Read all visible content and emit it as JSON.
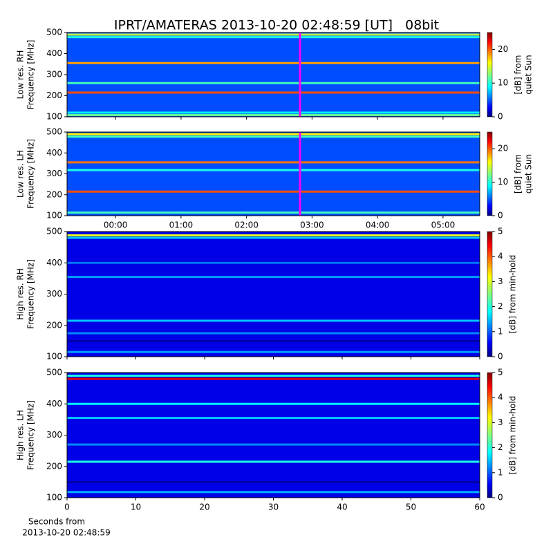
{
  "chart_data": {
    "type": "spectrogram",
    "title": "IPRT/AMATERAS 2013-10-20 02:48:59 [UT]   08bit",
    "marker_x": 2.8164,
    "marker_color": "#ff00ff",
    "x_label": [
      "Seconds from",
      "2013-10-20 02:48:59"
    ],
    "panels": [
      {
        "ylabel": [
          "Low res. RH",
          "Frequency [MHz]"
        ],
        "ylim": [
          100,
          500
        ],
        "yticks": [
          100,
          200,
          300,
          400,
          500
        ],
        "xlim": [
          -0.74,
          5.56
        ],
        "marker": true,
        "clim": [
          0,
          25
        ],
        "cticks": [
          0,
          10,
          20
        ],
        "clabel": [
          "[dB] from",
          "quiet Sun"
        ],
        "background_db": 5,
        "bands": [
          {
            "freq": 490,
            "db": 14
          },
          {
            "freq": 478,
            "db": 10
          },
          {
            "freq": 355,
            "db": 18
          },
          {
            "freq": 260,
            "db": 11
          },
          {
            "freq": 215,
            "db": 20
          },
          {
            "freq": 120,
            "db": 9
          },
          {
            "freq": 108,
            "db": 12
          }
        ]
      },
      {
        "ylabel": [
          "Low res. LH",
          "Frequency [MHz]"
        ],
        "ylim": [
          100,
          500
        ],
        "yticks": [
          100,
          200,
          300,
          400,
          500
        ],
        "xlim": [
          -0.74,
          5.56
        ],
        "marker": true,
        "xticks": [
          {
            "value": 0,
            "label": "00:00"
          },
          {
            "value": 1,
            "label": "01:00"
          },
          {
            "value": 2,
            "label": "02:00"
          },
          {
            "value": 3,
            "label": "03:00"
          },
          {
            "value": 4,
            "label": "04:00"
          },
          {
            "value": 5,
            "label": "05:00"
          }
        ],
        "clim": [
          0,
          25
        ],
        "cticks": [
          0,
          10,
          20
        ],
        "clabel": [
          "[dB] from",
          "quiet Sun"
        ],
        "background_db": 5,
        "bands": [
          {
            "freq": 490,
            "db": 16
          },
          {
            "freq": 478,
            "db": 11
          },
          {
            "freq": 355,
            "db": 19
          },
          {
            "freq": 318,
            "db": 10
          },
          {
            "freq": 215,
            "db": 20
          },
          {
            "freq": 115,
            "db": 11
          }
        ]
      },
      {
        "ylabel": [
          "High res. RH",
          "Frequency [MHz]"
        ],
        "ylim": [
          100,
          500
        ],
        "yticks": [
          100,
          200,
          300,
          400,
          500
        ],
        "xlim": [
          0,
          60
        ],
        "clim": [
          0,
          5
        ],
        "cticks": [
          0,
          1,
          2,
          3,
          4,
          5
        ],
        "clabel": [
          "[dB] from min-hold"
        ],
        "background_db": 0.5,
        "bands": [
          {
            "freq": 488,
            "db": 3
          },
          {
            "freq": 480,
            "db": 1.6
          },
          {
            "freq": 400,
            "db": 1.2
          },
          {
            "freq": 355,
            "db": 1.4
          },
          {
            "freq": 215,
            "db": 1.6
          },
          {
            "freq": 175,
            "db": 1.3
          },
          {
            "freq": 150,
            "db": 0.2
          },
          {
            "freq": 115,
            "db": 1.4
          }
        ]
      },
      {
        "ylabel": [
          "High res. LH",
          "Frequency [MHz]"
        ],
        "ylim": [
          100,
          500
        ],
        "yticks": [
          100,
          200,
          300,
          400,
          500
        ],
        "xlim": [
          0,
          60
        ],
        "xticks": [
          0,
          10,
          20,
          30,
          40,
          50,
          60
        ],
        "clim": [
          0,
          5
        ],
        "cticks": [
          0,
          1,
          2,
          3,
          4,
          5
        ],
        "clabel": [
          "[dB] from min-hold"
        ],
        "background_db": 0.5,
        "bands": [
          {
            "freq": 490,
            "db": 2
          },
          {
            "freq": 480,
            "db": 4.5
          },
          {
            "freq": 400,
            "db": 1.8
          },
          {
            "freq": 355,
            "db": 1.6
          },
          {
            "freq": 270,
            "db": 1.3
          },
          {
            "freq": 215,
            "db": 2
          },
          {
            "freq": 150,
            "db": 0.2
          },
          {
            "freq": 118,
            "db": 1.5
          }
        ]
      }
    ]
  }
}
